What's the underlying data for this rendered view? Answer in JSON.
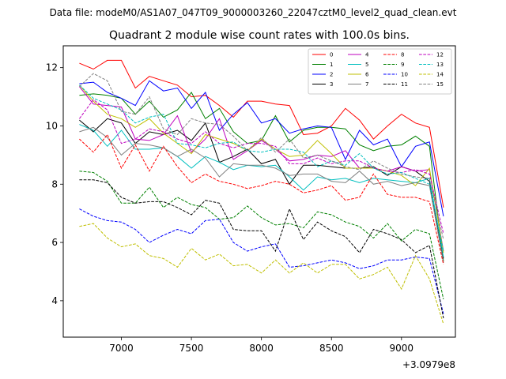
{
  "chart_data": {
    "type": "line",
    "suptitle": "Data file: modeM0/AS1A07_047T09_9000003260_22047cztM0_level2_quad_clean.evt",
    "title": "Quadrant 2 module wise count rates with 100.0s bins.",
    "xlabel": "",
    "ylabel": "",
    "x_offset_label": "+3.0979e8",
    "xlim": [
      6585,
      9385
    ],
    "ylim": [
      2.75,
      12.75
    ],
    "xticks": [
      7000,
      7500,
      8000,
      8500,
      9000
    ],
    "yticks": [
      4,
      6,
      8,
      10,
      12
    ],
    "x": [
      6700,
      6800,
      6900,
      7000,
      7100,
      7200,
      7300,
      7400,
      7500,
      7600,
      7700,
      7800,
      7900,
      8000,
      8100,
      8200,
      8300,
      8400,
      8500,
      8600,
      8700,
      8800,
      8900,
      9000,
      9100,
      9200,
      9300
    ],
    "legend_position": "top-right",
    "series": [
      {
        "name": "0",
        "color": "#ff0000",
        "dash": "solid",
        "values": [
          12.15,
          11.95,
          12.25,
          12.25,
          11.3,
          11.7,
          11.55,
          11.4,
          11.0,
          11.05,
          10.7,
          10.3,
          10.85,
          10.85,
          10.75,
          10.7,
          9.7,
          9.75,
          10.0,
          10.6,
          10.2,
          9.55,
          10.0,
          10.4,
          10.1,
          9.95,
          7.2
        ]
      },
      {
        "name": "1",
        "color": "#008000",
        "dash": "solid",
        "values": [
          11.05,
          11.1,
          11.05,
          10.95,
          10.4,
          10.85,
          10.3,
          10.55,
          11.15,
          10.25,
          10.6,
          9.8,
          9.4,
          9.5,
          10.35,
          9.45,
          9.85,
          9.95,
          9.95,
          9.9,
          9.35,
          9.15,
          9.3,
          9.35,
          9.65,
          9.3,
          5.35
        ]
      },
      {
        "name": "2",
        "color": "#0000ff",
        "dash": "solid",
        "values": [
          11.45,
          11.5,
          11.15,
          10.95,
          10.7,
          11.55,
          11.2,
          11.3,
          10.6,
          11.15,
          9.85,
          10.4,
          10.8,
          10.1,
          10.25,
          9.75,
          9.9,
          10.0,
          9.95,
          8.85,
          9.85,
          9.35,
          9.55,
          8.6,
          9.3,
          9.45,
          6.9
        ]
      },
      {
        "name": "3",
        "color": "#000000",
        "dash": "solid",
        "values": [
          10.2,
          9.8,
          10.25,
          10.1,
          9.4,
          9.8,
          9.7,
          9.85,
          9.5,
          10.1,
          8.75,
          8.95,
          9.2,
          8.7,
          8.85,
          8.0,
          8.65,
          8.65,
          8.6,
          8.55,
          8.55,
          8.6,
          8.3,
          8.6,
          8.45,
          8.1,
          5.45
        ]
      },
      {
        "name": "4",
        "color": "#bf00bf",
        "dash": "solid",
        "values": [
          11.35,
          10.75,
          10.7,
          10.65,
          9.55,
          9.5,
          9.7,
          10.35,
          9.1,
          9.55,
          10.25,
          8.85,
          9.15,
          9.5,
          9.2,
          8.8,
          8.85,
          9.0,
          8.95,
          9.15,
          8.55,
          8.55,
          8.45,
          8.6,
          8.45,
          8.5,
          5.7
        ]
      },
      {
        "name": "5",
        "color": "#00bfbf",
        "dash": "solid",
        "values": [
          10.05,
          9.85,
          9.3,
          9.85,
          9.2,
          9.2,
          9.25,
          8.95,
          8.55,
          8.95,
          8.75,
          8.5,
          8.65,
          8.6,
          8.65,
          8.25,
          7.8,
          8.25,
          8.15,
          8.2,
          8.05,
          8.2,
          8.15,
          8.1,
          8.05,
          8.2,
          5.5
        ]
      },
      {
        "name": "6",
        "color": "#bfbf00",
        "dash": "solid",
        "values": [
          11.4,
          10.85,
          10.4,
          10.25,
          9.95,
          10.25,
          9.75,
          9.4,
          9.05,
          9.7,
          9.55,
          9.4,
          9.15,
          9.55,
          9.2,
          8.95,
          9.0,
          9.5,
          9.05,
          8.55,
          8.55,
          8.55,
          8.45,
          8.3,
          7.95,
          8.55,
          5.65
        ]
      },
      {
        "name": "7",
        "color": "#808080",
        "dash": "solid",
        "values": [
          9.8,
          9.95,
          9.6,
          9.0,
          9.4,
          9.35,
          9.25,
          8.95,
          9.2,
          8.9,
          8.25,
          8.7,
          8.65,
          8.65,
          8.55,
          8.3,
          8.35,
          8.35,
          8.1,
          8.05,
          8.45,
          8.0,
          8.1,
          7.95,
          8.05,
          7.95,
          5.3
        ]
      },
      {
        "name": "8",
        "color": "#ff0000",
        "dash": "dashed",
        "values": [
          9.55,
          9.1,
          9.7,
          8.55,
          9.35,
          8.45,
          9.3,
          8.6,
          8.05,
          8.35,
          8.1,
          8.0,
          7.85,
          7.95,
          8.1,
          8.0,
          7.7,
          7.8,
          7.95,
          7.45,
          7.55,
          8.35,
          7.65,
          7.55,
          7.55,
          7.4,
          5.25
        ]
      },
      {
        "name": "9",
        "color": "#008000",
        "dash": "dashed",
        "values": [
          8.45,
          8.4,
          8.1,
          7.35,
          7.35,
          7.9,
          7.2,
          7.55,
          7.3,
          7.2,
          6.8,
          6.85,
          7.25,
          6.85,
          6.6,
          6.65,
          6.5,
          7.05,
          6.95,
          6.7,
          6.55,
          6.15,
          6.65,
          6.05,
          6.45,
          6.3,
          4.05
        ]
      },
      {
        "name": "10",
        "color": "#0000ff",
        "dash": "dashed",
        "values": [
          7.15,
          6.9,
          6.75,
          6.7,
          6.45,
          6.0,
          6.25,
          6.45,
          6.3,
          6.75,
          6.8,
          6.0,
          5.7,
          5.85,
          5.95,
          5.15,
          5.2,
          5.3,
          5.4,
          5.3,
          5.1,
          5.2,
          5.4,
          5.4,
          5.5,
          5.45,
          3.55
        ]
      },
      {
        "name": "11",
        "color": "#000000",
        "dash": "dashed",
        "values": [
          8.15,
          8.15,
          8.05,
          7.55,
          7.35,
          7.4,
          7.4,
          7.2,
          6.95,
          7.45,
          7.35,
          6.45,
          6.4,
          6.4,
          5.7,
          7.15,
          6.1,
          6.7,
          6.4,
          6.2,
          5.65,
          6.45,
          6.3,
          6.1,
          5.65,
          5.9,
          3.4
        ]
      },
      {
        "name": "12",
        "color": "#bf00bf",
        "dash": "dashed",
        "values": [
          10.25,
          10.9,
          10.55,
          9.4,
          9.55,
          9.9,
          9.8,
          9.55,
          9.4,
          9.8,
          9.4,
          9.25,
          9.4,
          9.4,
          9.3,
          8.7,
          8.7,
          8.9,
          8.7,
          8.8,
          8.8,
          8.55,
          8.45,
          8.4,
          8.5,
          8.35,
          6.3
        ]
      },
      {
        "name": "13",
        "color": "#00bfbf",
        "dash": "dashed",
        "values": [
          11.4,
          10.95,
          10.75,
          10.55,
          10.1,
          10.3,
          10.4,
          9.4,
          9.35,
          9.25,
          9.4,
          9.45,
          9.15,
          9.1,
          9.2,
          9.2,
          9.1,
          8.6,
          8.8,
          8.65,
          9.05,
          8.55,
          8.35,
          8.4,
          8.2,
          8.0,
          5.7
        ]
      },
      {
        "name": "14",
        "color": "#bfbf00",
        "dash": "dashed",
        "values": [
          6.55,
          6.65,
          6.15,
          5.85,
          5.95,
          5.55,
          5.45,
          5.15,
          5.8,
          5.4,
          5.6,
          5.2,
          5.25,
          4.95,
          5.4,
          4.95,
          5.3,
          4.95,
          5.25,
          5.25,
          4.75,
          4.9,
          5.15,
          4.4,
          5.55,
          4.75,
          3.2
        ]
      },
      {
        "name": "15",
        "color": "#808080",
        "dash": "dashed",
        "values": [
          11.35,
          11.8,
          11.55,
          10.5,
          10.4,
          11.0,
          9.9,
          9.7,
          10.25,
          10.1,
          10.05,
          9.65,
          9.15,
          9.6,
          9.1,
          9.55,
          8.9,
          9.0,
          8.8,
          8.6,
          8.5,
          8.8,
          8.55,
          8.35,
          8.25,
          8.2,
          6.1
        ]
      }
    ]
  }
}
